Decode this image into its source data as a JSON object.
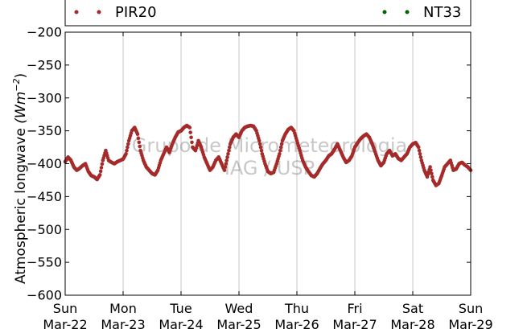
{
  "chart_data": {
    "type": "scatter",
    "ylabel": "Atmospheric longwave (Wm⁻²)",
    "ylabel_main": "Atmospheric longwave",
    "ylabel_unit": "(Wm",
    "ylabel_exp": "−2",
    "ylabel_close": ")",
    "ylim": [
      -600,
      -200
    ],
    "yticks": [
      -200,
      -250,
      -300,
      -350,
      -400,
      -450,
      -500,
      -550,
      -600
    ],
    "ytick_labels": [
      "−200",
      "−250",
      "−300",
      "−350",
      "−400",
      "−450",
      "−500",
      "−550",
      "−600"
    ],
    "xlim": [
      "2015-03-22",
      "2015-03-29"
    ],
    "xticks": [
      {
        "day": "Sun",
        "date": "Mar-22"
      },
      {
        "day": "Mon",
        "date": "Mar-23"
      },
      {
        "day": "Tue",
        "date": "Mar-24"
      },
      {
        "day": "Wed",
        "date": "Mar-25"
      },
      {
        "day": "Thu",
        "date": "Mar-26"
      },
      {
        "day": "Fri",
        "date": "Mar-27"
      },
      {
        "day": "Sat",
        "date": "Mar-28"
      },
      {
        "day": "Sun",
        "date": "Mar-29"
      }
    ],
    "grid": "vertical",
    "legend": [
      {
        "name": "PIR20",
        "color": "#a52a2a"
      },
      {
        "name": "NT33",
        "color": "#006400"
      }
    ],
    "legend_placement": "top",
    "watermark": [
      "Grupo de Micrometeorologia",
      "IAG / USP"
    ],
    "series": [
      {
        "name": "PIR20",
        "color": "#a52a2a",
        "points": [
          [
            0.0,
            -397
          ],
          [
            0.05,
            -390
          ],
          [
            0.1,
            -395
          ],
          [
            0.15,
            -405
          ],
          [
            0.2,
            -410
          ],
          [
            0.25,
            -407
          ],
          [
            0.3,
            -403
          ],
          [
            0.35,
            -400
          ],
          [
            0.4,
            -412
          ],
          [
            0.45,
            -418
          ],
          [
            0.5,
            -420
          ],
          [
            0.55,
            -424
          ],
          [
            0.6,
            -417
          ],
          [
            0.65,
            -395
          ],
          [
            0.7,
            -380
          ],
          [
            0.75,
            -395
          ],
          [
            0.8,
            -398
          ],
          [
            0.85,
            -400
          ],
          [
            0.9,
            -397
          ],
          [
            0.95,
            -395
          ],
          [
            1.0,
            -393
          ],
          [
            1.05,
            -385
          ],
          [
            1.1,
            -365
          ],
          [
            1.15,
            -350
          ],
          [
            1.2,
            -345
          ],
          [
            1.25,
            -355
          ],
          [
            1.3,
            -380
          ],
          [
            1.35,
            -395
          ],
          [
            1.4,
            -405
          ],
          [
            1.45,
            -410
          ],
          [
            1.5,
            -415
          ],
          [
            1.55,
            -417
          ],
          [
            1.6,
            -410
          ],
          [
            1.65,
            -395
          ],
          [
            1.7,
            -385
          ],
          [
            1.75,
            -375
          ],
          [
            1.8,
            -383
          ],
          [
            1.85,
            -370
          ],
          [
            1.9,
            -360
          ],
          [
            1.95,
            -352
          ],
          [
            2.0,
            -350
          ],
          [
            2.05,
            -345
          ],
          [
            2.1,
            -342
          ],
          [
            2.15,
            -345
          ],
          [
            2.2,
            -375
          ],
          [
            2.25,
            -380
          ],
          [
            2.3,
            -365
          ],
          [
            2.35,
            -375
          ],
          [
            2.4,
            -390
          ],
          [
            2.45,
            -400
          ],
          [
            2.5,
            -410
          ],
          [
            2.55,
            -405
          ],
          [
            2.6,
            -395
          ],
          [
            2.65,
            -390
          ],
          [
            2.7,
            -400
          ],
          [
            2.75,
            -410
          ],
          [
            2.8,
            -390
          ],
          [
            2.85,
            -370
          ],
          [
            2.9,
            -360
          ],
          [
            2.95,
            -355
          ],
          [
            3.0,
            -360
          ],
          [
            3.05,
            -350
          ],
          [
            3.1,
            -345
          ],
          [
            3.15,
            -343
          ],
          [
            3.2,
            -342
          ],
          [
            3.25,
            -343
          ],
          [
            3.3,
            -350
          ],
          [
            3.35,
            -365
          ],
          [
            3.4,
            -385
          ],
          [
            3.45,
            -400
          ],
          [
            3.5,
            -412
          ],
          [
            3.55,
            -415
          ],
          [
            3.6,
            -413
          ],
          [
            3.65,
            -400
          ],
          [
            3.7,
            -385
          ],
          [
            3.75,
            -365
          ],
          [
            3.8,
            -355
          ],
          [
            3.85,
            -348
          ],
          [
            3.9,
            -345
          ],
          [
            3.95,
            -350
          ],
          [
            4.0,
            -365
          ],
          [
            4.05,
            -380
          ],
          [
            4.1,
            -395
          ],
          [
            4.15,
            -405
          ],
          [
            4.2,
            -412
          ],
          [
            4.25,
            -418
          ],
          [
            4.3,
            -420
          ],
          [
            4.35,
            -415
          ],
          [
            4.4,
            -407
          ],
          [
            4.45,
            -400
          ],
          [
            4.5,
            -395
          ],
          [
            4.55,
            -388
          ],
          [
            4.6,
            -385
          ],
          [
            4.65,
            -378
          ],
          [
            4.7,
            -370
          ],
          [
            4.75,
            -380
          ],
          [
            4.8,
            -390
          ],
          [
            4.85,
            -398
          ],
          [
            4.9,
            -395
          ],
          [
            4.95,
            -388
          ],
          [
            5.0,
            -375
          ],
          [
            5.05,
            -368
          ],
          [
            5.1,
            -362
          ],
          [
            5.15,
            -358
          ],
          [
            5.2,
            -355
          ],
          [
            5.25,
            -360
          ],
          [
            5.3,
            -370
          ],
          [
            5.35,
            -382
          ],
          [
            5.4,
            -395
          ],
          [
            5.45,
            -403
          ],
          [
            5.5,
            -398
          ],
          [
            5.55,
            -385
          ],
          [
            5.6,
            -380
          ],
          [
            5.65,
            -388
          ],
          [
            5.7,
            -385
          ],
          [
            5.75,
            -392
          ],
          [
            5.8,
            -395
          ],
          [
            5.85,
            -390
          ],
          [
            5.9,
            -385
          ],
          [
            5.95,
            -375
          ],
          [
            6.0,
            -370
          ],
          [
            6.05,
            -368
          ],
          [
            6.1,
            -375
          ],
          [
            6.15,
            -395
          ],
          [
            6.2,
            -410
          ],
          [
            6.25,
            -420
          ],
          [
            6.3,
            -405
          ],
          [
            6.35,
            -425
          ],
          [
            6.4,
            -433
          ],
          [
            6.45,
            -430
          ],
          [
            6.5,
            -418
          ],
          [
            6.55,
            -405
          ],
          [
            6.6,
            -400
          ],
          [
            6.65,
            -395
          ],
          [
            6.7,
            -410
          ],
          [
            6.75,
            -408
          ],
          [
            6.8,
            -400
          ],
          [
            6.85,
            -398
          ],
          [
            6.9,
            -402
          ],
          [
            6.95,
            -405
          ],
          [
            7.0,
            -410
          ]
        ]
      },
      {
        "name": "NT33",
        "color": "#006400",
        "points": []
      }
    ]
  }
}
